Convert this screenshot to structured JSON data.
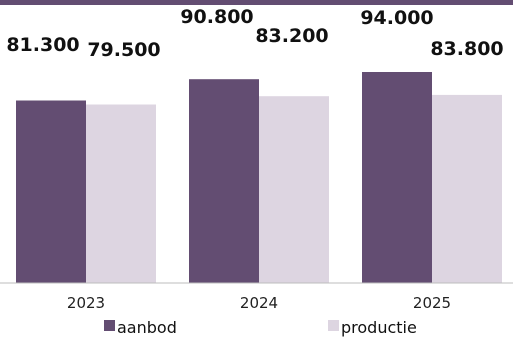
{
  "chart_data": {
    "type": "bar",
    "categories": [
      "2023",
      "2024",
      "2025"
    ],
    "series": [
      {
        "name": "aanbod",
        "values": [
          81300,
          90800,
          94000
        ],
        "labels": [
          "81.300",
          "90.800",
          "94.000"
        ]
      },
      {
        "name": "productie",
        "values": [
          79500,
          83200,
          83800
        ],
        "labels": [
          "79.500",
          "83.200",
          "83.800"
        ]
      }
    ],
    "title": "",
    "xlabel": "",
    "ylabel": "",
    "ylim": [
      0,
      100000
    ],
    "grid": false,
    "legend_position": "bottom",
    "colors": {
      "aanbod": "#634d72",
      "productie": "#ddd5e1",
      "top_band": "#634d72",
      "axis": "#bdbdbd"
    }
  }
}
